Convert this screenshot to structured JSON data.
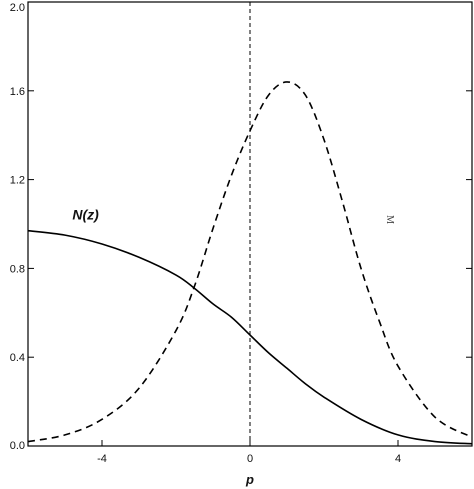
{
  "chart_data": {
    "type": "line",
    "title": "",
    "xlabel": "p",
    "ylabel": "",
    "xlim": [
      -6,
      6
    ],
    "ylim": [
      0.0,
      2.0
    ],
    "x_ticks": [
      -4,
      0,
      4
    ],
    "x_tick_labels": [
      "-4",
      "0",
      "4"
    ],
    "y_ticks": [
      0.0,
      0.4,
      0.8,
      1.2,
      1.6,
      2.0
    ],
    "y_tick_labels": [
      "0.0",
      "0.4",
      "0.8",
      "1.2",
      "1.6",
      "2.0"
    ],
    "grid": false,
    "reference_line": {
      "x": 0,
      "style": "dashed"
    },
    "series": [
      {
        "name": "N(z)",
        "style": "solid",
        "color": "#000000",
        "x": [
          -6,
          -5,
          -4,
          -3,
          -2,
          -1.5,
          -1,
          -0.5,
          0,
          0.5,
          1,
          1.5,
          2,
          3,
          4,
          5,
          6
        ],
        "y": [
          0.97,
          0.95,
          0.91,
          0.85,
          0.77,
          0.71,
          0.64,
          0.58,
          0.5,
          0.42,
          0.35,
          0.28,
          0.22,
          0.12,
          0.05,
          0.02,
          0.01
        ]
      },
      {
        "name": "",
        "style": "dashed",
        "color": "#000000",
        "x": [
          -6,
          -5,
          -4,
          -3,
          -2,
          -1.5,
          -1,
          -0.5,
          0,
          0.5,
          1,
          1.5,
          2,
          2.5,
          3,
          3.5,
          4,
          5,
          6
        ],
        "y": [
          0.02,
          0.05,
          0.12,
          0.26,
          0.52,
          0.72,
          0.98,
          1.22,
          1.42,
          1.58,
          1.64,
          1.58,
          1.38,
          1.1,
          0.8,
          0.56,
          0.36,
          0.13,
          0.04
        ]
      }
    ],
    "annotations": [
      {
        "text": "N(z)",
        "x": -4.8,
        "y": 1.02
      },
      {
        "text": "M",
        "x": 3.7,
        "y": 1.04
      }
    ]
  }
}
